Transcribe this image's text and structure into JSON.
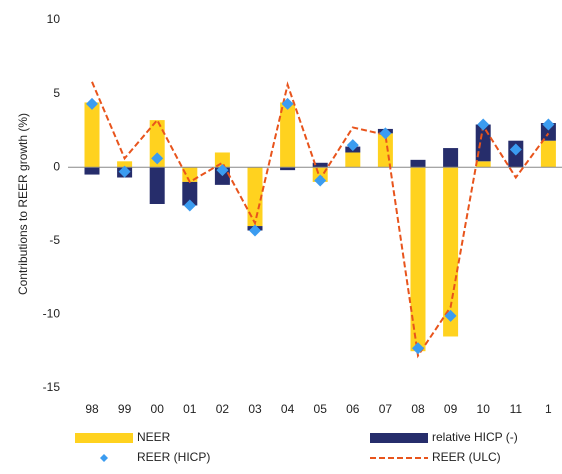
{
  "chart_data": {
    "type": "bar",
    "y_label": "Contributions to REER growth (%)",
    "categories": [
      "98",
      "99",
      "00",
      "01",
      "02",
      "03",
      "04",
      "05",
      "06",
      "07",
      "08",
      "09",
      "10",
      "11",
      "1"
    ],
    "series": [
      {
        "name": "NEER",
        "type": "bar",
        "color": "#ffd21f",
        "values": [
          4.4,
          0.4,
          3.2,
          -1.0,
          1.0,
          -4.0,
          4.4,
          -1.0,
          1.0,
          2.3,
          -12.5,
          -11.5,
          0.4,
          0,
          1.8
        ]
      },
      {
        "name": "relative HICP (-)",
        "type": "bar",
        "color": "#262d6b",
        "values": [
          -0.5,
          -0.7,
          -2.5,
          -1.6,
          -1.2,
          -0.3,
          -0.2,
          0.3,
          0.4,
          0.3,
          0.5,
          1.3,
          2.5,
          1.8,
          1.2
        ]
      },
      {
        "name": "REER (HICP)",
        "type": "scatter",
        "color": "#3b9cf0",
        "values": [
          4.3,
          -0.3,
          0.6,
          -2.6,
          -0.2,
          -4.3,
          4.3,
          -0.9,
          1.5,
          2.3,
          -12.3,
          -10.1,
          2.9,
          1.2,
          2.9
        ]
      },
      {
        "name": "REER (ULC)",
        "type": "line",
        "color": "#e8541c",
        "values": [
          5.8,
          0.6,
          3.2,
          -1.0,
          0.3,
          -3.8,
          5.6,
          -0.8,
          2.7,
          2.2,
          -12.8,
          -9.5,
          2.8,
          -0.7,
          2.3
        ]
      }
    ],
    "ylim": [
      -15,
      10
    ],
    "yticks": [
      -15,
      -10,
      -5,
      0,
      5,
      10
    ]
  }
}
